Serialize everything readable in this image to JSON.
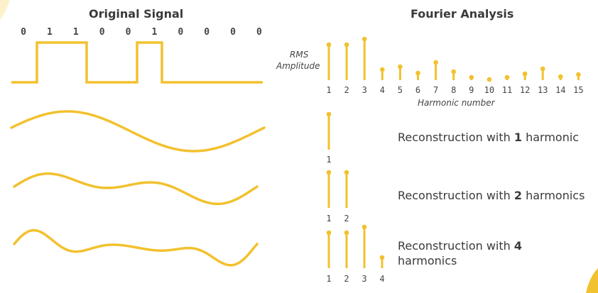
{
  "left_title": "Original Signal",
  "right_title": "Fourier Analysis",
  "bits": [
    "0",
    "1",
    "1",
    "0",
    "0",
    "1",
    "0",
    "0",
    "0",
    "0"
  ],
  "spectrum": {
    "ylabel_line1": "RMS",
    "ylabel_line2": "Amplitude",
    "xlabel": "Harmonic number"
  },
  "reconstructions": [
    {
      "prefix": "Reconstruction with ",
      "count": "1",
      "suffix": " harmonic"
    },
    {
      "prefix": "Reconstruction with ",
      "count": "2",
      "suffix": " harmonics"
    },
    {
      "prefix": "Reconstruction with ",
      "count": "4",
      "suffix": " harmonics"
    }
  ],
  "chart_data": {
    "type": "bar",
    "categories": [
      "1",
      "2",
      "3",
      "4",
      "5",
      "6",
      "7",
      "8",
      "9",
      "10",
      "11",
      "12",
      "13",
      "14",
      "15"
    ],
    "values": [
      0.5,
      0.5,
      0.58,
      0.15,
      0.19,
      0.1,
      0.25,
      0.12,
      0.04,
      0.01,
      0.04,
      0.09,
      0.16,
      0.05,
      0.08
    ],
    "title": "Fourier Analysis",
    "xlabel": "Harmonic number",
    "ylabel": "RMS Amplitude"
  },
  "colors": {
    "accent": "#f2c12e",
    "text": "#3a3a3a"
  }
}
